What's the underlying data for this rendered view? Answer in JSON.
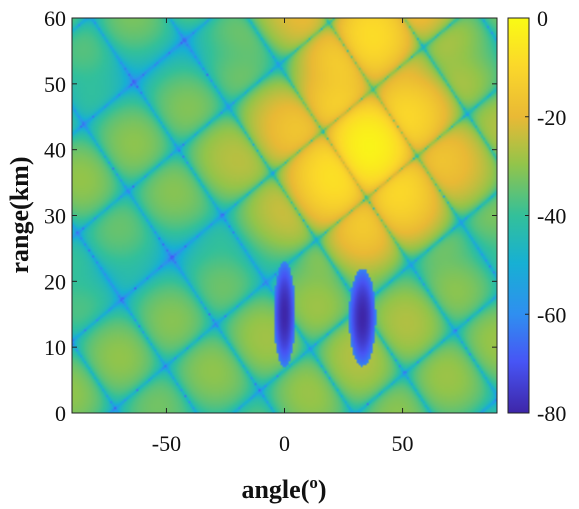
{
  "chart_data": {
    "type": "heatmap",
    "title": "",
    "xlabel": "angle(",
    "xlabel_sup": "o",
    "xlabel_close": ")",
    "ylabel": "range(km)",
    "xlim": [
      -90,
      90
    ],
    "ylim": [
      0,
      60
    ],
    "xticks": [
      -50,
      0,
      50
    ],
    "yticks": [
      0,
      10,
      20,
      30,
      40,
      50,
      60
    ],
    "colorbar": {
      "min": -80,
      "max": 0,
      "ticks": [
        0,
        -20,
        -40,
        -60,
        -80
      ],
      "colormap": "parula",
      "colors": [
        "#3e26a8",
        "#4755f5",
        "#2f8ff0",
        "#17b0d3",
        "#33c09a",
        "#93c44a",
        "#e9b935",
        "#fbd82a",
        "#f9fb14"
      ]
    },
    "features": {
      "peak": {
        "angle": 35,
        "range": 45,
        "value": 0
      },
      "nulls": [
        {
          "angle": [
            -4,
            4
          ],
          "range": [
            8,
            22
          ],
          "value": -80
        },
        {
          "angle": [
            28,
            38
          ],
          "range": [
            8,
            21
          ],
          "value": -80
        }
      ]
    }
  }
}
